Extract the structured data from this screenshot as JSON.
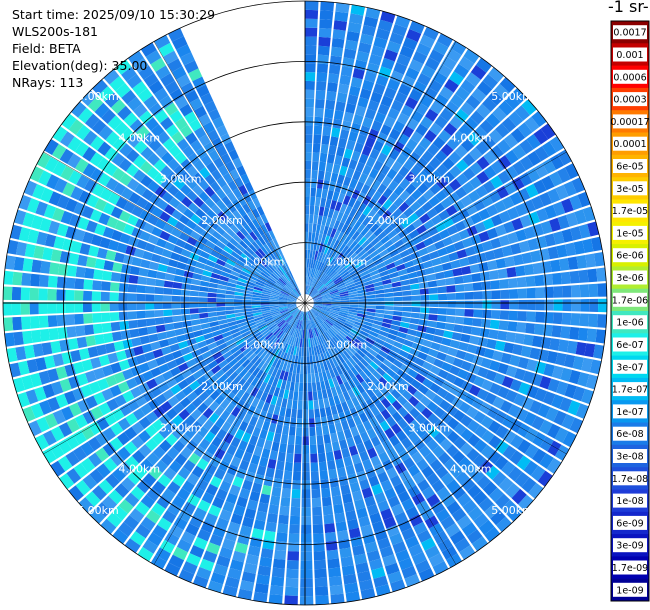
{
  "info": {
    "start_time": "Start time: 2025/09/10 15:30:29",
    "instrument": "WLS200s-181",
    "field": "Field: BETA",
    "elevation": "Elevation(deg): 35.00",
    "nrays": "NRays: 113"
  },
  "colorbar": {
    "title": "-1 sr-",
    "ticks": [
      "0.0017",
      "0.001",
      "0.0006",
      "0.0003",
      "0.00017",
      "0.0001",
      "6e-05",
      "3e-05",
      "1.7e-05",
      "1e-05",
      "6e-06",
      "3e-06",
      "1.7e-06",
      "1e-06",
      "6e-07",
      "3e-07",
      "1.7e-07",
      "1e-07",
      "6e-08",
      "3e-08",
      "1.7e-08",
      "1e-08",
      "6e-09",
      "3e-09",
      "1.7e-09",
      "1e-09"
    ],
    "colors": [
      "#8b0000",
      "#c40000",
      "#ff0000",
      "#ff3d00",
      "#ff7a00",
      "#ff9d00",
      "#ffb400",
      "#ffcc00",
      "#ffe600",
      "#f5f000",
      "#d8f000",
      "#b0ee30",
      "#7ee87a",
      "#40e8c0",
      "#1ef0e8",
      "#00d8f0",
      "#00bcf5",
      "#0898f0",
      "#1a7ce8",
      "#1e64e0",
      "#1e50dc",
      "#1e3cd8",
      "#1428cc",
      "#0a14c0",
      "#0000b0",
      "#000096"
    ]
  },
  "chart_data": {
    "type": "ppi",
    "field": "BETA",
    "elevation_deg": 35.0,
    "nrays": 113,
    "gap_azimuth_deg": [
      336,
      360
    ],
    "max_range_km": 5.0,
    "range_rings_km": [
      1,
      2,
      3,
      4,
      5
    ],
    "ring_labels": [
      "1.00km",
      "2.00km",
      "3.00km",
      "4.00km",
      "5.00km"
    ],
    "label_bearings_deg": [
      45,
      135,
      225,
      315
    ]
  }
}
